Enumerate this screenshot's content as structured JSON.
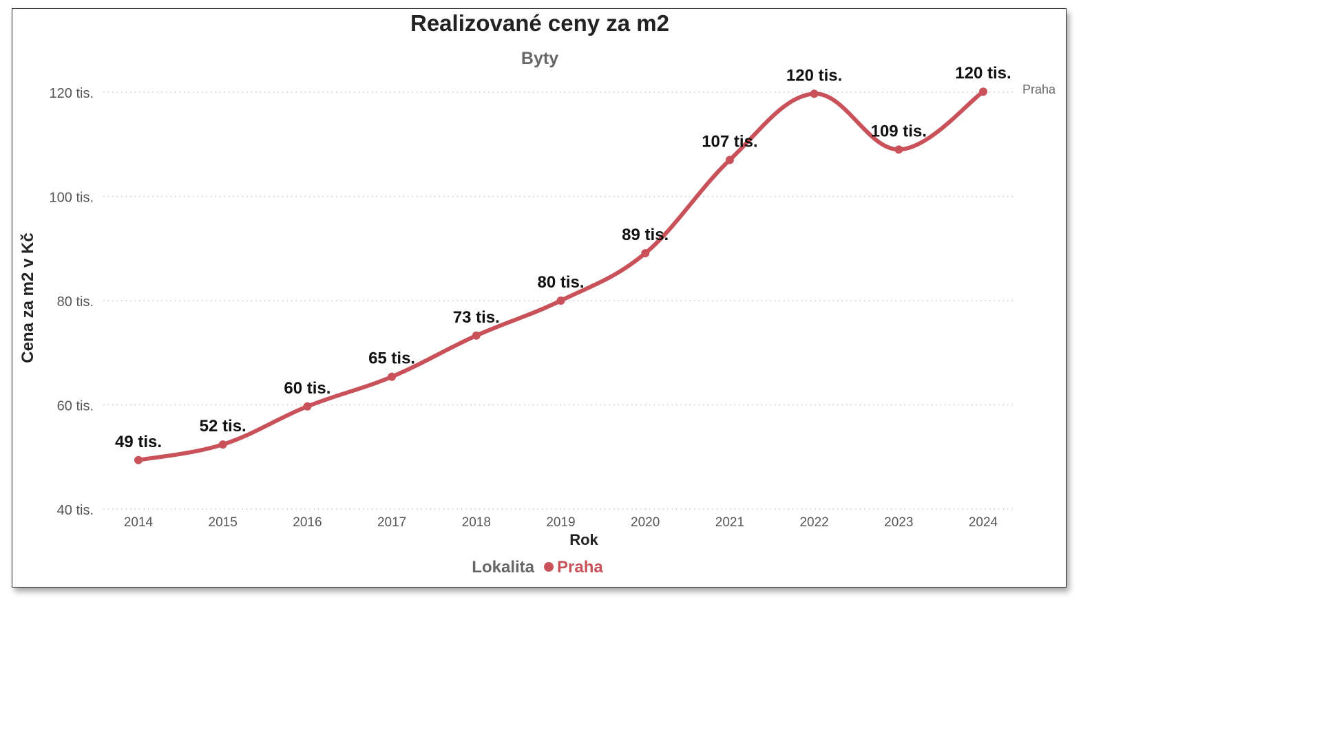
{
  "chart_data": {
    "type": "line",
    "title": "Realizované ceny za m2",
    "subtitle": "Byty",
    "xlabel": "Rok",
    "ylabel": "Cena za m2 v Kč",
    "categories": [
      "2014",
      "2015",
      "2016",
      "2017",
      "2018",
      "2019",
      "2020",
      "2021",
      "2022",
      "2023",
      "2024"
    ],
    "ylim": [
      40000,
      120000
    ],
    "yticks": [
      {
        "value": 40000,
        "label": "40 tis."
      },
      {
        "value": 60000,
        "label": "60 tis."
      },
      {
        "value": 80000,
        "label": "80 tis."
      },
      {
        "value": 100000,
        "label": "100 tis."
      },
      {
        "value": 120000,
        "label": "120 tis."
      }
    ],
    "grid": true,
    "legend": {
      "title": "Lokalita",
      "placement": "bottom-center"
    },
    "series": [
      {
        "name": "Praha",
        "color": "#c9525a",
        "values": [
          49400,
          52400,
          59700,
          65400,
          73300,
          80000,
          89100,
          107000,
          119700,
          109000,
          120100
        ],
        "data_labels": [
          "49 tis.",
          "52 tis.",
          "60 tis.",
          "65 tis.",
          "73 tis.",
          "80 tis.",
          "89 tis.",
          "107 tis.",
          "120 tis.",
          "109 tis.",
          "120 tis."
        ],
        "end_label": "Praha"
      }
    ]
  }
}
